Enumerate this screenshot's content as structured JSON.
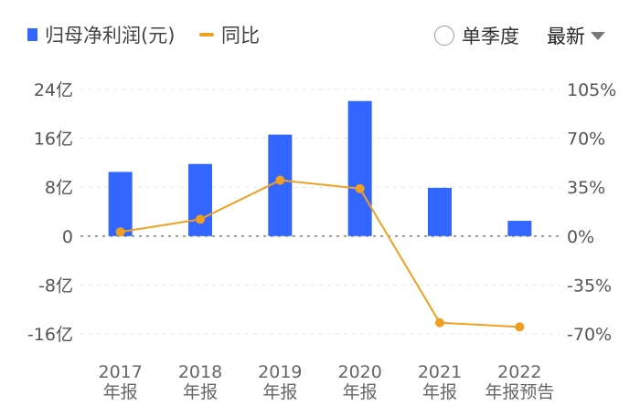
{
  "legend": {
    "bar_label": "归母净利润(元)",
    "line_label": "同比"
  },
  "controls": {
    "single_quarter_label": "单季度",
    "period_label": "最新"
  },
  "colors": {
    "bar": "#3366ff",
    "line": "#f0a020"
  },
  "chart_data": {
    "type": "bar",
    "categories": [
      "2017年报",
      "2018年报",
      "2019年报",
      "2020年报",
      "2021年报",
      "2022年报预告"
    ],
    "category_lines": [
      [
        "2017",
        "年报"
      ],
      [
        "2018",
        "年报"
      ],
      [
        "2019",
        "年报"
      ],
      [
        "2020",
        "年报"
      ],
      [
        "2021",
        "年报"
      ],
      [
        "2022",
        "年报预告"
      ]
    ],
    "series": [
      {
        "name": "归母净利润(元)",
        "type": "bar",
        "axis": "left",
        "values": [
          10.5,
          11.8,
          16.6,
          22.1,
          7.9,
          2.5
        ]
      },
      {
        "name": "同比",
        "type": "line",
        "axis": "right",
        "values": [
          3,
          12,
          40,
          34,
          -62,
          -65
        ]
      }
    ],
    "y_left": {
      "ticks": [
        "24亿",
        "16亿",
        "8亿",
        "0",
        "-8亿",
        "-16亿"
      ],
      "ylim": [
        -16,
        24
      ]
    },
    "y_right": {
      "ticks": [
        "105%",
        "70%",
        "35%",
        "0%",
        "-35%",
        "-70%"
      ],
      "ylim": [
        -70,
        105
      ]
    },
    "grid": true,
    "legend_position": "top-left"
  }
}
